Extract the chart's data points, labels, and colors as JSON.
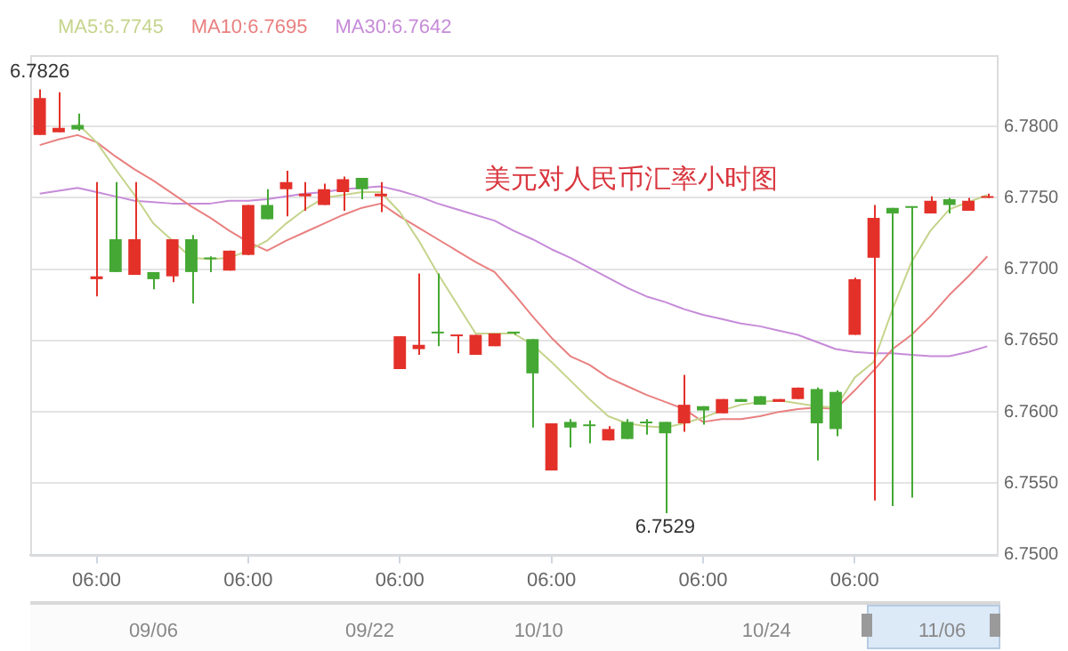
{
  "chart_data": {
    "type": "candlestick",
    "title": "美元对人民币汇率小时图",
    "categories": [
      null,
      null,
      null,
      "06:00",
      null,
      null,
      null,
      null,
      null,
      null,
      null,
      "06:00",
      null,
      null,
      null,
      null,
      null,
      null,
      null,
      "06:00",
      null,
      null,
      null,
      null,
      null,
      null,
      null,
      "06:00",
      null,
      null,
      null,
      null,
      null,
      null,
      null,
      "06:00",
      null,
      null,
      null,
      null,
      null,
      null,
      null,
      "06:00",
      null,
      null,
      null,
      null,
      null,
      null,
      null
    ],
    "ohlc": [
      [
        6.7794,
        6.7826,
        6.7794,
        6.782
      ],
      [
        6.7796,
        6.7824,
        6.7796,
        6.7799
      ],
      [
        6.7801,
        6.7809,
        6.7797,
        6.7798
      ],
      [
        6.7693,
        6.7761,
        6.7681,
        6.7695
      ],
      [
        6.7721,
        6.7761,
        6.7698,
        6.7698
      ],
      [
        6.7696,
        6.7761,
        6.7696,
        6.7721
      ],
      [
        6.7698,
        6.7698,
        6.7686,
        6.7693
      ],
      [
        6.7695,
        6.7721,
        6.7691,
        6.7721
      ],
      [
        6.7721,
        6.7724,
        6.7676,
        6.7698
      ],
      [
        6.7708,
        6.7709,
        6.7698,
        6.7707
      ],
      [
        6.7699,
        6.7713,
        6.7699,
        6.7713
      ],
      [
        6.771,
        6.7745,
        6.771,
        6.7745
      ],
      [
        6.7745,
        6.7756,
        6.7735,
        6.7735
      ],
      [
        6.7756,
        6.7769,
        6.7737,
        6.7761
      ],
      [
        6.7751,
        6.7761,
        6.7741,
        6.7753
      ],
      [
        6.7745,
        6.776,
        6.7745,
        6.7756
      ],
      [
        6.7754,
        6.7765,
        6.7741,
        6.7763
      ],
      [
        6.7764,
        6.7764,
        6.7749,
        6.7756
      ],
      [
        6.7751,
        6.7761,
        6.774,
        6.7753
      ],
      [
        6.763,
        6.7653,
        6.763,
        6.7653
      ],
      [
        6.7644,
        6.7697,
        6.764,
        6.7647
      ],
      [
        6.7656,
        6.7697,
        6.7646,
        6.7655
      ],
      [
        6.7653,
        6.7654,
        6.7641,
        6.7654
      ],
      [
        6.764,
        6.7654,
        6.764,
        6.7654
      ],
      [
        6.7646,
        6.7655,
        6.7646,
        6.7655
      ],
      [
        6.7656,
        6.7656,
        6.7654,
        6.7655
      ],
      [
        6.7651,
        6.7651,
        6.7589,
        6.7627
      ],
      [
        6.7559,
        6.7592,
        6.7559,
        6.7592
      ],
      [
        6.7593,
        6.7595,
        6.7575,
        6.7589
      ],
      [
        6.7591,
        6.7594,
        6.7578,
        6.759
      ],
      [
        6.758,
        6.759,
        6.758,
        6.7588
      ],
      [
        6.7593,
        6.7595,
        6.7581,
        6.7581
      ],
      [
        6.7593,
        6.7595,
        6.7584,
        6.7592
      ],
      [
        6.7593,
        6.7593,
        6.7529,
        6.7585
      ],
      [
        6.7592,
        6.7626,
        6.7586,
        6.7605
      ],
      [
        6.7604,
        6.7604,
        6.7591,
        6.7601
      ],
      [
        6.7599,
        6.7609,
        6.7599,
        6.7609
      ],
      [
        6.7609,
        6.7609,
        6.7607,
        6.7607
      ],
      [
        6.7611,
        6.7611,
        6.7605,
        6.7605
      ],
      [
        6.7607,
        6.7609,
        6.7607,
        6.7609
      ],
      [
        6.7609,
        6.7617,
        6.7609,
        6.7617
      ],
      [
        6.7616,
        6.7617,
        6.7566,
        6.7592
      ],
      [
        6.7614,
        6.7615,
        6.7583,
        6.7588
      ],
      [
        6.7654,
        6.7694,
        6.7654,
        6.7693
      ],
      [
        6.7708,
        6.7745,
        6.7538,
        6.7736
      ],
      [
        6.7743,
        6.7743,
        6.7534,
        6.7739
      ],
      [
        6.7744,
        6.7744,
        6.754,
        6.7743
      ],
      [
        6.7739,
        6.7751,
        6.7739,
        6.7748
      ],
      [
        6.7749,
        6.775,
        6.7739,
        6.7745
      ],
      [
        6.7741,
        6.775,
        6.7741,
        6.7748
      ],
      [
        6.775,
        6.7753,
        6.775,
        6.7751
      ]
    ],
    "colors": [
      "#e3312a",
      "#e3312a",
      "#45a834",
      "#e3312a",
      "#45a834",
      "#e3312a",
      "#45a834",
      "#e3312a",
      "#45a834",
      "#45a834",
      "#e3312a",
      "#e3312a",
      "#45a834",
      "#e3312a",
      "#e3312a",
      "#e3312a",
      "#e3312a",
      "#45a834",
      "#e3312a",
      "#e3312a",
      "#e3312a",
      "#45a834",
      "#e3312a",
      "#e3312a",
      "#e3312a",
      "#45a834",
      "#45a834",
      "#e3312a",
      "#45a834",
      "#45a834",
      "#e3312a",
      "#45a834",
      "#45a834",
      "#45a834",
      "#e3312a",
      "#45a834",
      "#e3312a",
      "#45a834",
      "#45a834",
      "#e3312a",
      "#e3312a",
      "#45a834",
      "#45a834",
      "#e3312a",
      "#e3312a",
      "#45a834",
      "#45a834",
      "#e3312a",
      "#45a834",
      "#e3312a",
      "#e3312a"
    ],
    "value_labels": [
      "6.7826",
      null,
      null,
      null,
      null,
      null,
      null,
      null,
      null,
      null,
      null,
      null,
      null,
      null,
      null,
      null,
      null,
      null,
      null,
      null,
      null,
      null,
      null,
      null,
      null,
      null,
      null,
      null,
      null,
      null,
      null,
      null,
      null,
      "6.7529",
      null,
      null,
      null,
      null,
      null,
      null,
      null,
      null,
      null,
      null,
      null,
      null,
      null,
      null,
      null,
      null,
      null
    ],
    "series": [
      {
        "name": "MA5:6.7745",
        "type": "line",
        "color": "#c5d48c",
        "values": [
          null,
          null,
          6.7802,
          6.7789,
          6.777,
          6.7752,
          6.7732,
          null,
          6.7708,
          6.7707,
          6.7708,
          6.7713,
          6.772,
          6.7732,
          6.7742,
          6.775,
          6.7752,
          6.7754,
          6.7754,
          6.774,
          6.772,
          6.7697,
          6.7676,
          6.7655,
          6.7655,
          6.7655,
          6.7647,
          6.7635,
          6.7622,
          6.7609,
          6.7597,
          6.7592,
          6.759,
          6.7589,
          6.7592,
          6.7596,
          6.7601,
          6.7605,
          6.7607,
          6.7608,
          6.7606,
          6.7604,
          6.7603,
          6.7624,
          6.7635,
          6.7672,
          6.7705,
          6.7727,
          6.7742,
          6.7747,
          6.7752
        ]
      },
      {
        "name": "MA10:6.7695",
        "type": "line",
        "color": "#e98080",
        "values": [
          6.7787,
          6.7791,
          6.7794,
          6.7789,
          6.7779,
          6.777,
          6.7762,
          6.7753,
          6.7744,
          6.7736,
          6.7727,
          6.7719,
          6.7713,
          6.772,
          6.7726,
          6.7732,
          6.7738,
          6.7743,
          6.7746,
          6.7737,
          6.7729,
          6.7721,
          6.7713,
          6.7705,
          6.7698,
          6.7683,
          6.7667,
          6.7652,
          6.7639,
          6.7633,
          6.7624,
          6.7618,
          6.7612,
          6.7607,
          6.7602,
          6.7593,
          6.7595,
          6.7595,
          6.7597,
          6.76,
          6.7602,
          6.7603,
          6.7602,
          6.7615,
          6.7629,
          6.7644,
          6.7654,
          6.7667,
          6.7682,
          6.7695,
          6.7709
        ]
      },
      {
        "name": "MA30:6.7642",
        "type": "line",
        "color": "#c68bd8",
        "values": [
          6.7753,
          6.7755,
          6.7757,
          6.7754,
          6.7751,
          6.7748,
          6.7747,
          6.7746,
          6.7746,
          6.7746,
          6.7748,
          6.7748,
          6.7749,
          6.7751,
          6.7753,
          6.7754,
          6.7756,
          6.7757,
          6.7758,
          6.7755,
          6.7751,
          6.7746,
          6.7742,
          6.7738,
          6.7734,
          6.7727,
          6.7721,
          6.7714,
          6.7708,
          6.7701,
          6.7694,
          6.7687,
          6.7681,
          6.7677,
          6.7672,
          6.7668,
          6.7665,
          6.7662,
          6.766,
          6.7657,
          6.7654,
          6.7649,
          6.7644,
          6.7642,
          6.7641,
          6.7641,
          6.764,
          6.7639,
          6.7639,
          6.7642,
          6.7646
        ]
      }
    ],
    "ylim": [
      6.75,
      6.785
    ],
    "yticks": [
      {
        "value": 6.75,
        "label": "6.7500"
      },
      {
        "value": 6.755,
        "label": "6.7550"
      },
      {
        "value": 6.76,
        "label": "6.7600"
      },
      {
        "value": 6.765,
        "label": "6.7650"
      },
      {
        "value": 6.77,
        "label": "6.7700"
      },
      {
        "value": 6.775,
        "label": "6.7750"
      },
      {
        "value": 6.78,
        "label": "6.7800"
      }
    ],
    "grid": "y",
    "legend": "top left",
    "marker": "none",
    "annotations": [
      "09/06",
      "09/22",
      "10/10",
      "10/24",
      "11/06"
    ]
  }
}
